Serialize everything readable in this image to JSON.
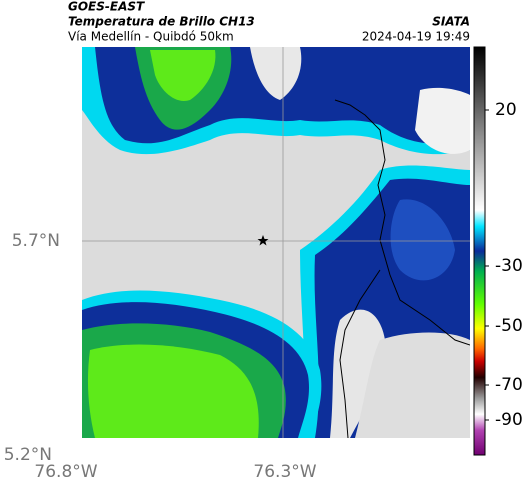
{
  "header": {
    "title": "GOES-EAST",
    "subtitle": "Temperatura de Brillo CH13",
    "route": "Vía Medellín - Quibdó 50km",
    "source": "SIATA",
    "timestamp": "2024-04-19 19:49"
  },
  "axes": {
    "y_labels": [
      "5.7°N",
      "5.2°N"
    ],
    "x_labels": [
      "76.8°W",
      "76.3°W"
    ]
  },
  "colorbar": {
    "ticks": [
      "20",
      "-30",
      "-50",
      "-70",
      "-90"
    ]
  }
}
